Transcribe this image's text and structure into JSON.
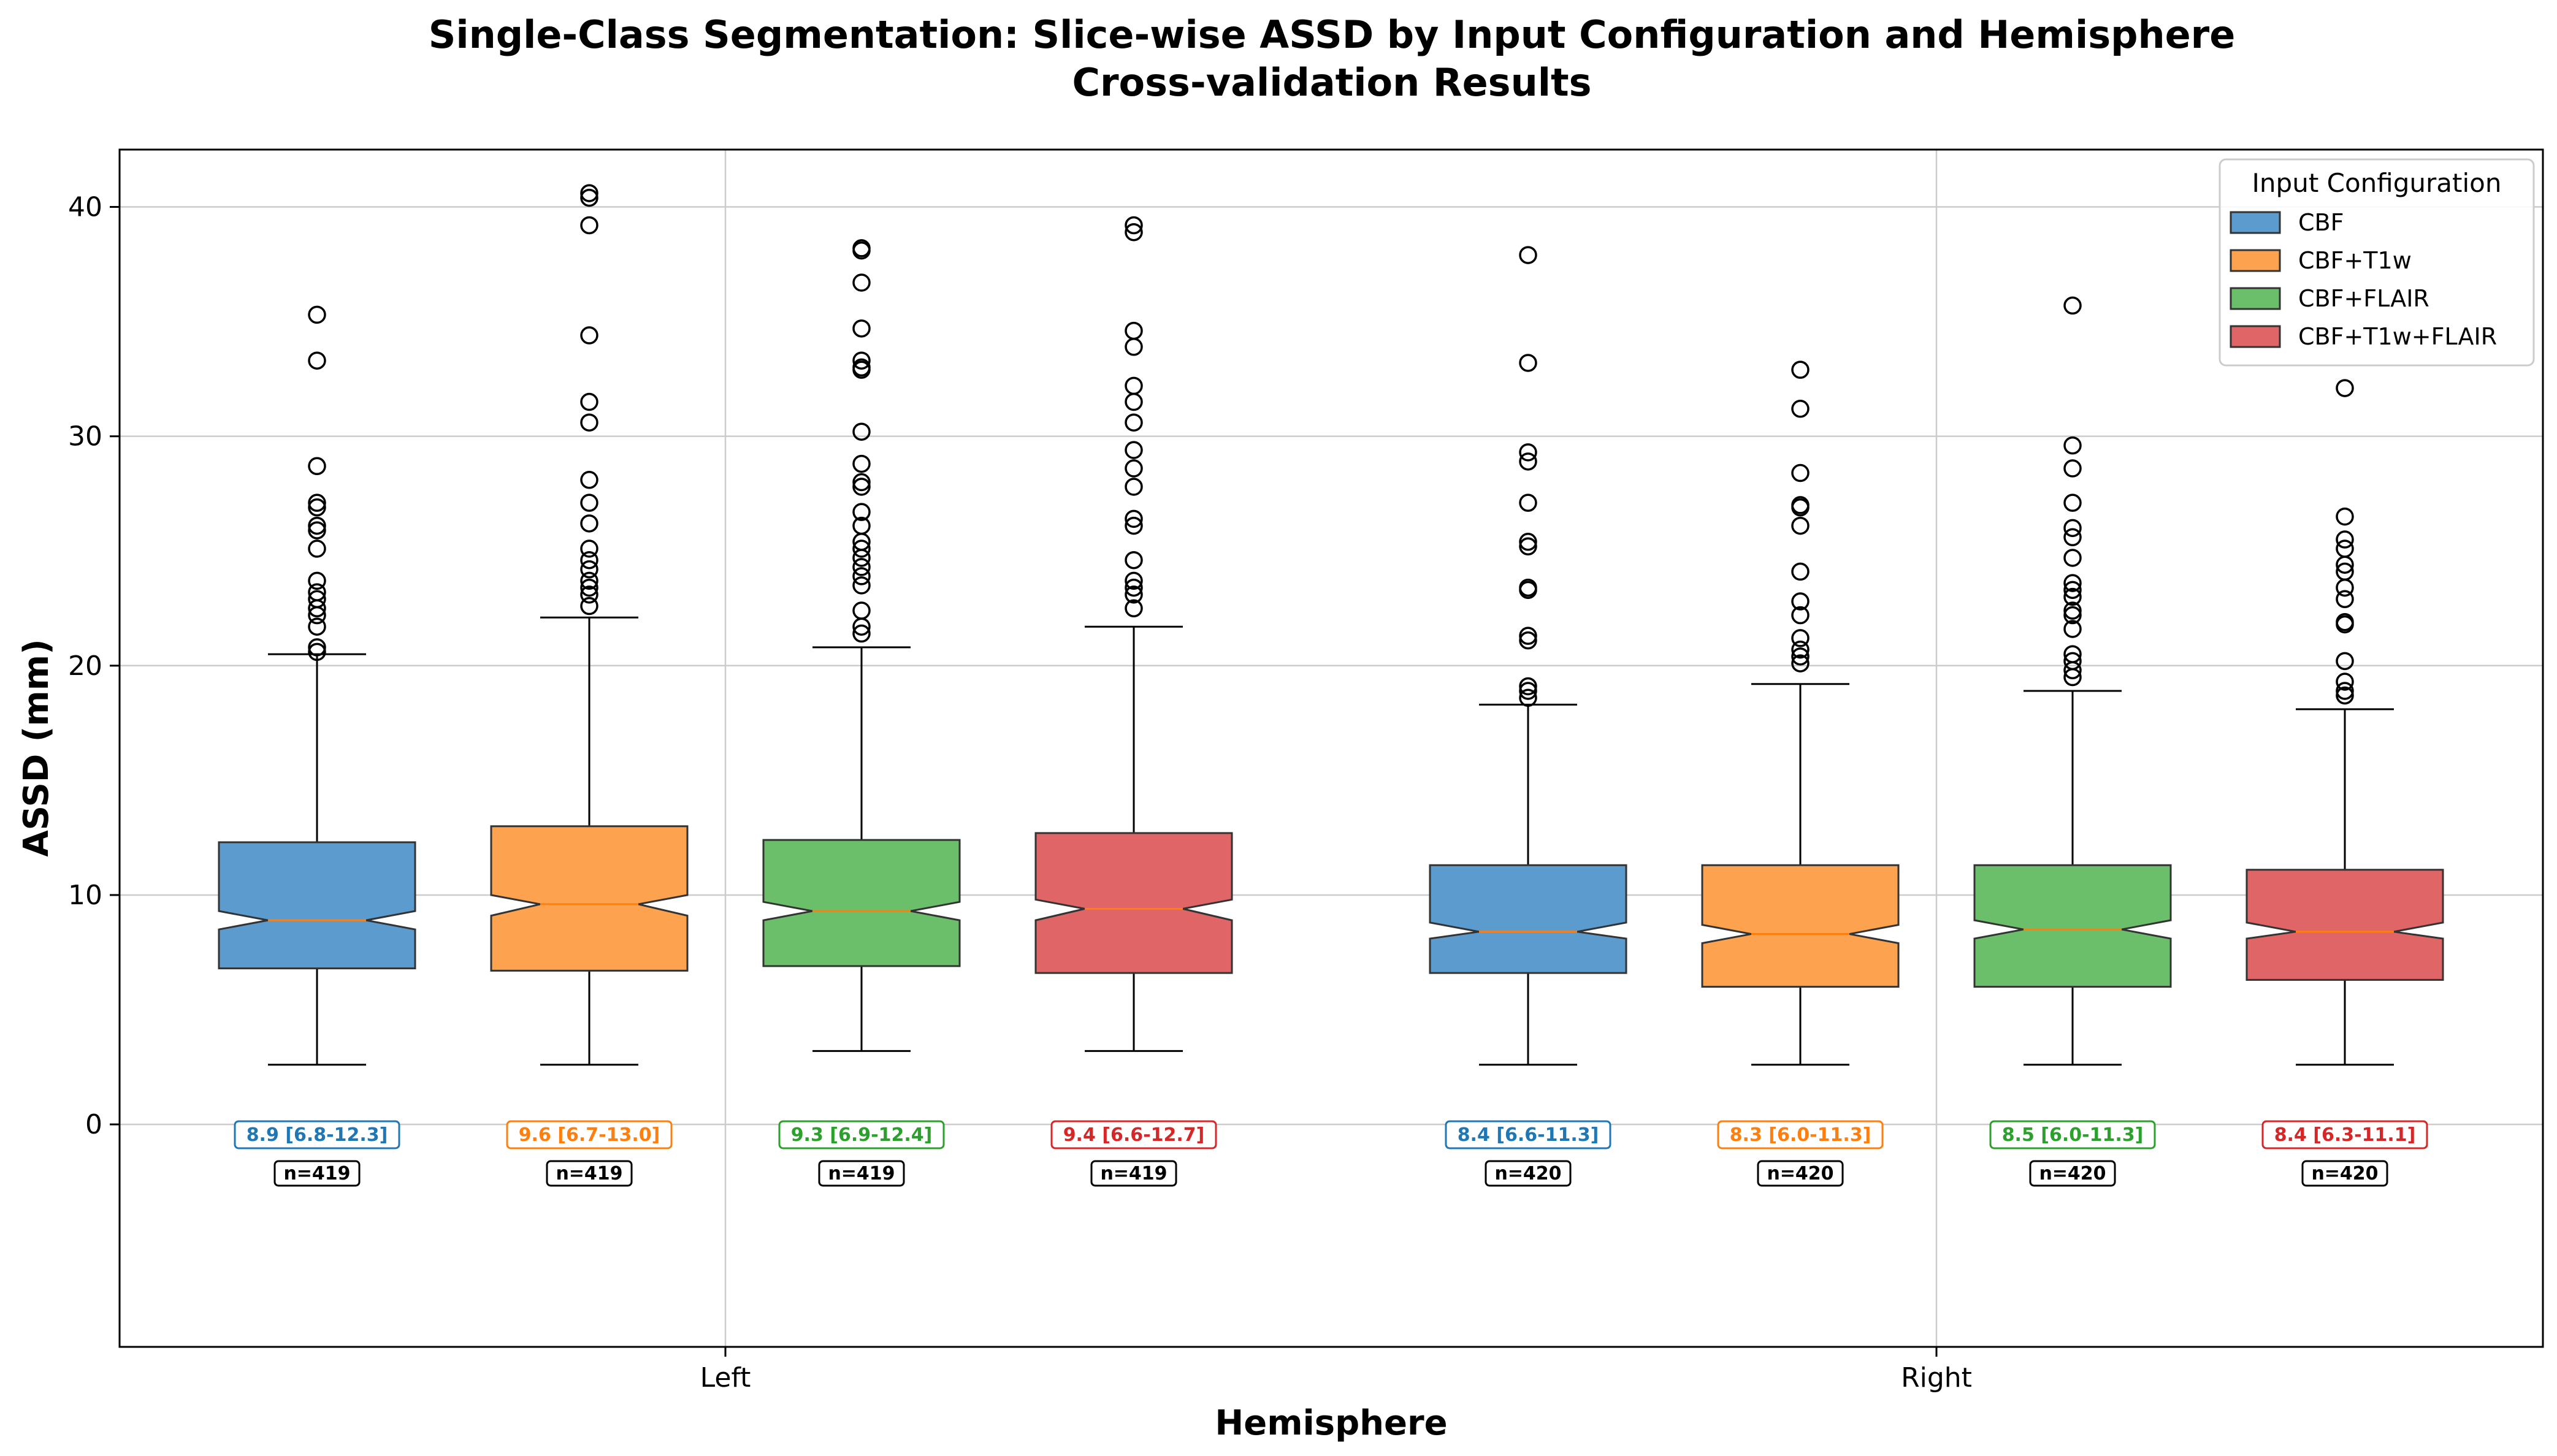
{
  "chart_data": {
    "type": "box",
    "title": "Single-Class Segmentation: Slice-wise ASSD by Input Configuration and Hemisphere",
    "subtitle": "Cross-validation Results",
    "xlabel": "Hemisphere",
    "ylabel": "ASSD (mm)",
    "ylim": [
      -9.7,
      42.5
    ],
    "yticks": [
      0,
      10,
      20,
      30,
      40
    ],
    "grid": true,
    "categories": [
      "Left",
      "Right"
    ],
    "legend": {
      "title": "Input Configuration",
      "position": "top-right",
      "entries": [
        "CBF",
        "CBF+T1w",
        "CBF+FLAIR",
        "CBF+T1w+FLAIR"
      ]
    },
    "colors": {
      "CBF": "#5b9bcd",
      "CBF+T1w": "#fda34f",
      "CBF+FLAIR": "#6bbf6b",
      "CBF+T1w+FLAIR": "#e06566",
      "CBF_text": "#1f77b4",
      "CBF+T1w_text": "#ff7f0e",
      "CBF+FLAIR_text": "#2ca02c",
      "CBF+T1w+FLAIR_text": "#d62728",
      "median_line": "#ff7f0e",
      "edge": "#333333"
    },
    "series": [
      {
        "name": "CBF",
        "boxes": [
          {
            "category": "Left",
            "whisker_low": 2.6,
            "q1": 6.8,
            "median": 8.9,
            "q3": 12.3,
            "whisker_high": 20.5,
            "notch_low": 8.5,
            "notch_high": 9.3,
            "outliers": [
              35.3,
              33.3,
              28.7,
              27.1,
              26.9,
              26.1,
              25.9,
              25.1,
              23.7,
              23.2,
              22.9,
              22.5,
              22.2,
              21.7,
              20.8,
              20.6
            ],
            "label": "8.9 [6.8-12.3]",
            "n_label": "n=419"
          },
          {
            "category": "Right",
            "whisker_low": 2.6,
            "q1": 6.6,
            "median": 8.4,
            "q3": 11.3,
            "whisker_high": 18.3,
            "notch_low": 8.1,
            "notch_high": 8.8,
            "outliers": [
              37.9,
              33.2,
              29.3,
              28.9,
              27.1,
              25.4,
              25.2,
              23.4,
              23.3,
              21.3,
              21.1,
              19.1,
              18.9,
              18.6
            ],
            "label": "8.4 [6.6-11.3]",
            "n_label": "n=420"
          }
        ]
      },
      {
        "name": "CBF+T1w",
        "boxes": [
          {
            "category": "Left",
            "whisker_low": 2.6,
            "q1": 6.7,
            "median": 9.6,
            "q3": 13.0,
            "whisker_high": 22.1,
            "notch_low": 9.1,
            "notch_high": 10.0,
            "outliers": [
              40.6,
              40.4,
              39.2,
              34.4,
              31.5,
              30.6,
              28.1,
              27.1,
              26.2,
              25.1,
              24.6,
              24.2,
              23.7,
              23.4,
              23.1,
              22.6
            ],
            "label": "9.6 [6.7-13.0]",
            "n_label": "n=419"
          },
          {
            "category": "Right",
            "whisker_low": 2.6,
            "q1": 6.0,
            "median": 8.3,
            "q3": 11.3,
            "whisker_high": 19.2,
            "notch_low": 7.9,
            "notch_high": 8.7,
            "outliers": [
              32.9,
              31.2,
              28.4,
              27.0,
              26.9,
              26.1,
              24.1,
              22.8,
              22.2,
              21.2,
              20.7,
              20.4,
              20.1
            ],
            "label": "8.3 [6.0-11.3]",
            "n_label": "n=420"
          }
        ]
      },
      {
        "name": "CBF+FLAIR",
        "boxes": [
          {
            "category": "Left",
            "whisker_low": 3.2,
            "q1": 6.9,
            "median": 9.3,
            "q3": 12.4,
            "whisker_high": 20.8,
            "notch_low": 8.9,
            "notch_high": 9.7,
            "outliers": [
              38.2,
              38.1,
              36.7,
              34.7,
              33.3,
              33.0,
              32.9,
              30.2,
              28.8,
              28.0,
              27.8,
              26.7,
              26.1,
              25.4,
              25.1,
              24.7,
              24.3,
              23.9,
              23.5,
              22.4,
              21.7,
              21.4
            ],
            "label": "9.3 [6.9-12.4]",
            "n_label": "n=419"
          },
          {
            "category": "Right",
            "whisker_low": 2.6,
            "q1": 6.0,
            "median": 8.5,
            "q3": 11.3,
            "whisker_high": 18.9,
            "notch_low": 8.1,
            "notch_high": 8.9,
            "outliers": [
              35.7,
              29.6,
              28.6,
              27.1,
              26.0,
              25.6,
              24.7,
              23.6,
              23.3,
              23.0,
              22.4,
              22.2,
              21.6,
              20.5,
              20.2,
              19.8,
              19.5
            ],
            "label": "8.5 [6.0-11.3]",
            "n_label": "n=420"
          }
        ]
      },
      {
        "name": "CBF+T1w+FLAIR",
        "boxes": [
          {
            "category": "Left",
            "whisker_low": 3.2,
            "q1": 6.6,
            "median": 9.4,
            "q3": 12.7,
            "whisker_high": 21.7,
            "notch_low": 8.9,
            "notch_high": 9.8,
            "outliers": [
              39.2,
              38.9,
              34.6,
              33.9,
              32.2,
              31.5,
              30.6,
              29.4,
              28.6,
              27.8,
              26.4,
              26.1,
              24.6,
              23.7,
              23.4,
              23.1,
              22.5
            ],
            "label": "9.4 [6.6-12.7]",
            "n_label": "n=419"
          },
          {
            "category": "Right",
            "whisker_low": 2.6,
            "q1": 6.3,
            "median": 8.4,
            "q3": 11.1,
            "whisker_high": 18.1,
            "notch_low": 8.1,
            "notch_high": 8.8,
            "outliers": [
              32.1,
              26.5,
              25.5,
              25.1,
              24.4,
              24.1,
              23.4,
              22.9,
              21.9,
              21.8,
              20.2,
              19.3,
              18.9,
              18.7
            ],
            "label": "8.4 [6.3-11.1]",
            "n_label": "n=420"
          }
        ]
      }
    ]
  }
}
